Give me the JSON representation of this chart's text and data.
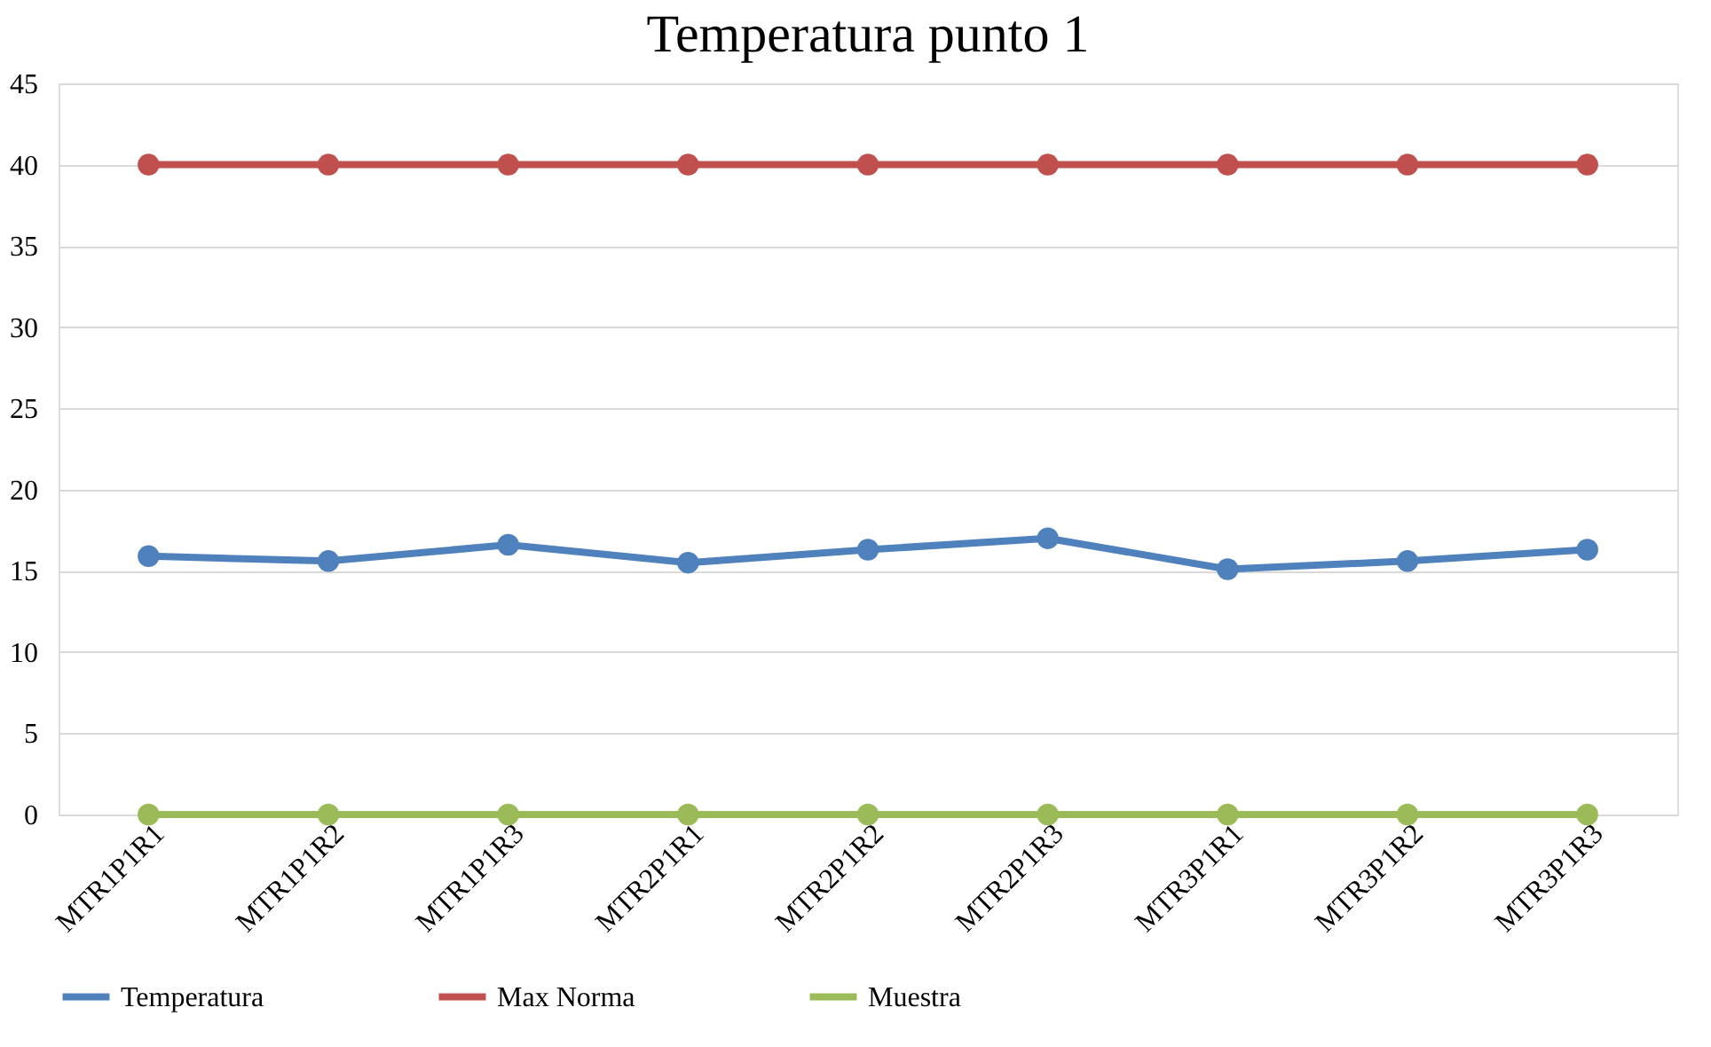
{
  "chart_data": {
    "type": "line",
    "title": "Temperatura punto 1",
    "categories": [
      "MTR1P1R1",
      "MTR1P1R2",
      "MTR1P1R3",
      "MTR2P1R1",
      "MTR2P1R2",
      "MTR2P1R3",
      "MTR3P1R1",
      "MTR3P1R2",
      "MTR3P1R3"
    ],
    "series": [
      {
        "name": "Temperatura",
        "color": "#4f81bd",
        "values": [
          15.9,
          15.6,
          16.6,
          15.5,
          16.3,
          17.0,
          15.1,
          15.6,
          16.3
        ]
      },
      {
        "name": "Max Norma",
        "color": "#c0504d",
        "values": [
          40,
          40,
          40,
          40,
          40,
          40,
          40,
          40,
          40
        ]
      },
      {
        "name": "Muestra",
        "color": "#9bbb59",
        "values": [
          0,
          0,
          0,
          0,
          0,
          0,
          0,
          0,
          0
        ]
      }
    ],
    "ylim": [
      0,
      45
    ],
    "yticks": [
      0,
      5,
      10,
      15,
      20,
      25,
      30,
      35,
      40,
      45
    ],
    "grid": "y",
    "legend": "bottom",
    "marker": "circle",
    "line_style": "solid"
  }
}
